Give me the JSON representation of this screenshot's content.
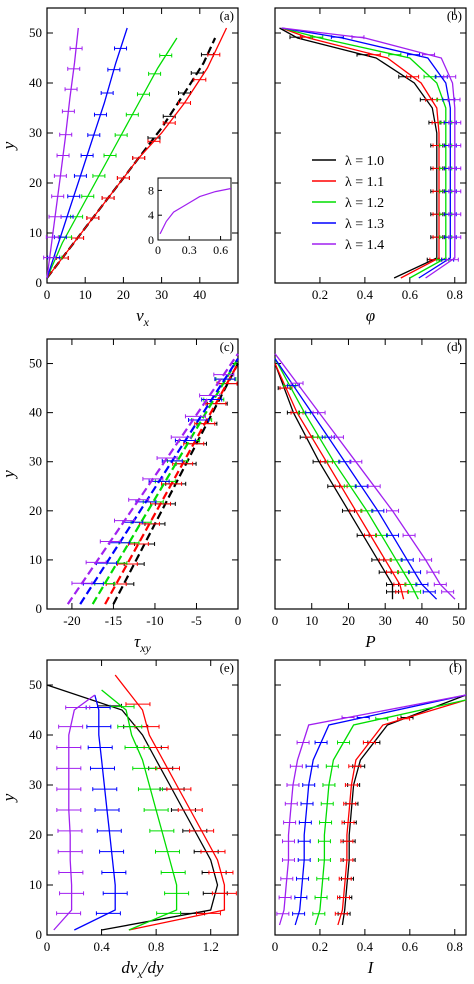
{
  "figure": {
    "series_colors": {
      "1.0": "#000000",
      "1.1": "#ff0000",
      "1.2": "#00dd00",
      "1.3": "#0000ff",
      "1.4": "#a020f0"
    },
    "legend_title_symbol": "λ",
    "legend": [
      {
        "label": "λ = 1.0",
        "color": "#000000"
      },
      {
        "label": "λ = 1.1",
        "color": "#ff0000"
      },
      {
        "label": "λ = 1.2",
        "color": "#00dd00"
      },
      {
        "label": "λ = 1.3",
        "color": "#0000ff"
      },
      {
        "label": "λ = 1.4",
        "color": "#a020f0"
      }
    ]
  },
  "chart_data": [
    {
      "panel": "(a)",
      "type": "line",
      "xlabel": "v_x",
      "ylabel": "y",
      "xlim": [
        0,
        50
      ],
      "ylim": [
        0,
        55
      ],
      "xticks": [
        0,
        10,
        20,
        30,
        40
      ],
      "yticks": [
        0,
        10,
        20,
        30,
        40,
        50
      ],
      "series": [
        {
          "lambda": "1.0",
          "x": [
            0,
            6,
            12,
            18,
            24,
            30,
            36,
            41,
            44
          ],
          "y": [
            1,
            7,
            13,
            19,
            25,
            31,
            38,
            44,
            49
          ],
          "dashed": true
        },
        {
          "lambda": "1.1",
          "x": [
            0,
            6,
            12,
            18,
            24,
            30,
            36,
            42,
            47
          ],
          "y": [
            1,
            7,
            13,
            19,
            25,
            30,
            36,
            43,
            51
          ]
        },
        {
          "lambda": "1.2",
          "x": [
            0,
            4,
            9,
            14,
            19,
            24,
            29,
            34
          ],
          "y": [
            1,
            8,
            15,
            22,
            29,
            36,
            43,
            49
          ]
        },
        {
          "lambda": "1.3",
          "x": [
            0,
            3,
            6,
            9,
            12,
            15,
            18,
            21
          ],
          "y": [
            1,
            8,
            15,
            22,
            29,
            36,
            44,
            51
          ]
        },
        {
          "lambda": "1.4",
          "x": [
            0,
            1.2,
            2.4,
            3.6,
            4.8,
            6,
            7.2,
            8.2
          ],
          "y": [
            1,
            8,
            15,
            22,
            29,
            37,
            44,
            51
          ]
        }
      ],
      "inset": {
        "xlim": [
          0,
          0.7
        ],
        "ylim": [
          0,
          10
        ],
        "xticks": [
          "0",
          "0.3",
          "0.6"
        ],
        "yticks": [
          "0",
          "4",
          "8"
        ],
        "x": [
          0.02,
          0.08,
          0.15,
          0.25,
          0.4,
          0.55,
          0.7
        ],
        "y": [
          1,
          3,
          4.5,
          5.5,
          7,
          7.8,
          8.3
        ],
        "lambda": "1.4"
      }
    },
    {
      "panel": "(b)",
      "type": "line",
      "xlabel": "φ",
      "ylabel": "",
      "xlim": [
        0,
        0.85
      ],
      "ylim": [
        0,
        55
      ],
      "xticks": [
        "0.2",
        "0.4",
        "0.6",
        "0.8"
      ],
      "yticks": [],
      "series": [
        {
          "lambda": "1.0",
          "x": [
            0.53,
            0.72,
            0.72,
            0.72,
            0.72,
            0.72,
            0.72,
            0.7,
            0.62,
            0.45,
            0.1,
            0.02
          ],
          "y": [
            1,
            5,
            10,
            15,
            20,
            25,
            30,
            35,
            40,
            45,
            49,
            51
          ]
        },
        {
          "lambda": "1.1",
          "x": [
            0.56,
            0.73,
            0.73,
            0.73,
            0.73,
            0.73,
            0.73,
            0.72,
            0.65,
            0.5,
            0.15,
            0.03
          ],
          "y": [
            1,
            5,
            10,
            15,
            20,
            25,
            30,
            35,
            40,
            45,
            49,
            51
          ]
        },
        {
          "lambda": "1.2",
          "x": [
            0.6,
            0.76,
            0.76,
            0.76,
            0.76,
            0.76,
            0.76,
            0.76,
            0.72,
            0.6,
            0.2,
            0.03
          ],
          "y": [
            1,
            5,
            10,
            15,
            20,
            25,
            30,
            35,
            40,
            45,
            49,
            51
          ]
        },
        {
          "lambda": "1.3",
          "x": [
            0.64,
            0.78,
            0.78,
            0.78,
            0.78,
            0.78,
            0.78,
            0.78,
            0.76,
            0.68,
            0.3,
            0.03
          ],
          "y": [
            1,
            5,
            10,
            15,
            20,
            25,
            30,
            35,
            40,
            45,
            49,
            51
          ]
        },
        {
          "lambda": "1.4",
          "x": [
            0.67,
            0.8,
            0.8,
            0.8,
            0.8,
            0.8,
            0.8,
            0.8,
            0.79,
            0.74,
            0.4,
            0.03
          ],
          "y": [
            1,
            5,
            10,
            15,
            20,
            25,
            30,
            35,
            40,
            45,
            49,
            51
          ]
        }
      ]
    },
    {
      "panel": "(c)",
      "type": "line",
      "xlabel": "τ_xy",
      "ylabel": "y",
      "xlim": [
        -23,
        0
      ],
      "ylim": [
        0,
        55
      ],
      "xticks": [
        -20,
        -15,
        -10,
        -5,
        0
      ],
      "yticks": [
        0,
        10,
        20,
        30,
        40,
        50
      ],
      "series": [
        {
          "lambda": "1.0",
          "x": [
            -15,
            0
          ],
          "y": [
            1,
            50
          ],
          "dashed": true
        },
        {
          "lambda": "1.1",
          "x": [
            -16,
            0
          ],
          "y": [
            1,
            50
          ],
          "dashed": true
        },
        {
          "lambda": "1.2",
          "x": [
            -17.5,
            0
          ],
          "y": [
            1,
            51
          ],
          "dashed": true
        },
        {
          "lambda": "1.3",
          "x": [
            -19,
            0
          ],
          "y": [
            1,
            51
          ],
          "dashed": true
        },
        {
          "lambda": "1.4",
          "x": [
            -20.5,
            0
          ],
          "y": [
            1,
            52
          ],
          "dashed": true
        }
      ]
    },
    {
      "panel": "(d)",
      "type": "line",
      "xlabel": "P",
      "ylabel": "",
      "xlim": [
        0,
        52
      ],
      "ylim": [
        0,
        55
      ],
      "xticks": [
        0,
        10,
        20,
        30,
        40,
        50
      ],
      "yticks": [],
      "series": [
        {
          "lambda": "1.0",
          "x": [
            32,
            32,
            28,
            20,
            12,
            5,
            0
          ],
          "y": [
            2,
            5,
            10,
            20,
            30,
            40,
            50
          ]
        },
        {
          "lambda": "1.1",
          "x": [
            35,
            34,
            30,
            22,
            14,
            6,
            0
          ],
          "y": [
            2,
            5,
            10,
            20,
            30,
            40,
            50
          ]
        },
        {
          "lambda": "1.2",
          "x": [
            39,
            37,
            33,
            25,
            16,
            8,
            0
          ],
          "y": [
            2,
            5,
            10,
            20,
            30,
            40,
            51
          ]
        },
        {
          "lambda": "1.3",
          "x": [
            44,
            40,
            36,
            28,
            19,
            10,
            0
          ],
          "y": [
            2,
            5,
            10,
            20,
            30,
            40,
            51
          ]
        },
        {
          "lambda": "1.4",
          "x": [
            49,
            45,
            41,
            32,
            22,
            12,
            0
          ],
          "y": [
            2,
            5,
            10,
            20,
            30,
            40,
            52
          ]
        }
      ]
    },
    {
      "panel": "(e)",
      "type": "line",
      "xlabel": "dv_x/dy",
      "ylabel": "y",
      "xlim": [
        0,
        1.4
      ],
      "ylim": [
        0,
        55
      ],
      "xticks": [
        "0",
        "0.4",
        "0.8",
        "1.2"
      ],
      "yticks": [
        0,
        10,
        20,
        30,
        40,
        50
      ],
      "series": [
        {
          "lambda": "1.0",
          "x": [
            0.4,
            1.2,
            1.25,
            1.2,
            1.1,
            1.0,
            0.9,
            0.8,
            0.7,
            0.55,
            0.0
          ],
          "y": [
            1,
            5,
            10,
            15,
            20,
            25,
            30,
            35,
            40,
            45,
            50
          ]
        },
        {
          "lambda": "1.1",
          "x": [
            0.6,
            1.3,
            1.3,
            1.25,
            1.15,
            1.05,
            0.95,
            0.85,
            0.75,
            0.7,
            0.5
          ],
          "y": [
            1,
            5,
            10,
            15,
            20,
            25,
            30,
            35,
            40,
            45,
            52
          ]
        },
        {
          "lambda": "1.2",
          "x": [
            0.6,
            0.95,
            0.95,
            0.9,
            0.85,
            0.8,
            0.75,
            0.7,
            0.62,
            0.58,
            0.4
          ],
          "y": [
            1,
            5,
            10,
            15,
            20,
            25,
            30,
            35,
            40,
            45,
            49
          ]
        },
        {
          "lambda": "1.3",
          "x": [
            0.2,
            0.5,
            0.5,
            0.48,
            0.46,
            0.44,
            0.42,
            0.4,
            0.38,
            0.38,
            0.35
          ],
          "y": [
            1,
            5,
            10,
            15,
            20,
            25,
            30,
            35,
            40,
            45,
            48
          ]
        },
        {
          "lambda": "1.4",
          "x": [
            0.05,
            0.18,
            0.18,
            0.17,
            0.17,
            0.16,
            0.16,
            0.16,
            0.16,
            0.2,
            0.35
          ],
          "y": [
            1,
            5,
            10,
            15,
            20,
            25,
            30,
            35,
            40,
            45,
            48
          ]
        }
      ]
    },
    {
      "panel": "(f)",
      "type": "line",
      "xlabel": "I",
      "ylabel": "",
      "xlim": [
        0,
        0.85
      ],
      "ylim": [
        0,
        55
      ],
      "xticks": [
        "0",
        "0.2",
        "0.4",
        "0.6",
        "0.8"
      ],
      "yticks": [],
      "series": [
        {
          "lambda": "1.0",
          "x": [
            0.3,
            0.31,
            0.32,
            0.33,
            0.33,
            0.34,
            0.35,
            0.38,
            0.5,
            0.85
          ],
          "y": [
            2,
            5,
            10,
            15,
            20,
            25,
            30,
            35,
            42,
            48
          ]
        },
        {
          "lambda": "1.1",
          "x": [
            0.28,
            0.3,
            0.31,
            0.32,
            0.32,
            0.33,
            0.34,
            0.36,
            0.48,
            0.85
          ],
          "y": [
            2,
            5,
            10,
            15,
            20,
            25,
            30,
            35,
            42,
            47
          ]
        },
        {
          "lambda": "1.2",
          "x": [
            0.18,
            0.2,
            0.21,
            0.22,
            0.22,
            0.23,
            0.24,
            0.26,
            0.35,
            0.85
          ],
          "y": [
            2,
            5,
            10,
            15,
            20,
            25,
            30,
            35,
            42,
            47
          ]
        },
        {
          "lambda": "1.3",
          "x": [
            0.09,
            0.11,
            0.12,
            0.13,
            0.13,
            0.14,
            0.15,
            0.17,
            0.24,
            0.85
          ],
          "y": [
            2,
            5,
            10,
            15,
            20,
            25,
            30,
            35,
            42,
            48
          ]
        },
        {
          "lambda": "1.4",
          "x": [
            0.02,
            0.04,
            0.05,
            0.06,
            0.06,
            0.07,
            0.08,
            0.1,
            0.15,
            0.85
          ],
          "y": [
            2,
            5,
            10,
            15,
            20,
            25,
            30,
            35,
            42,
            48
          ]
        }
      ]
    }
  ]
}
